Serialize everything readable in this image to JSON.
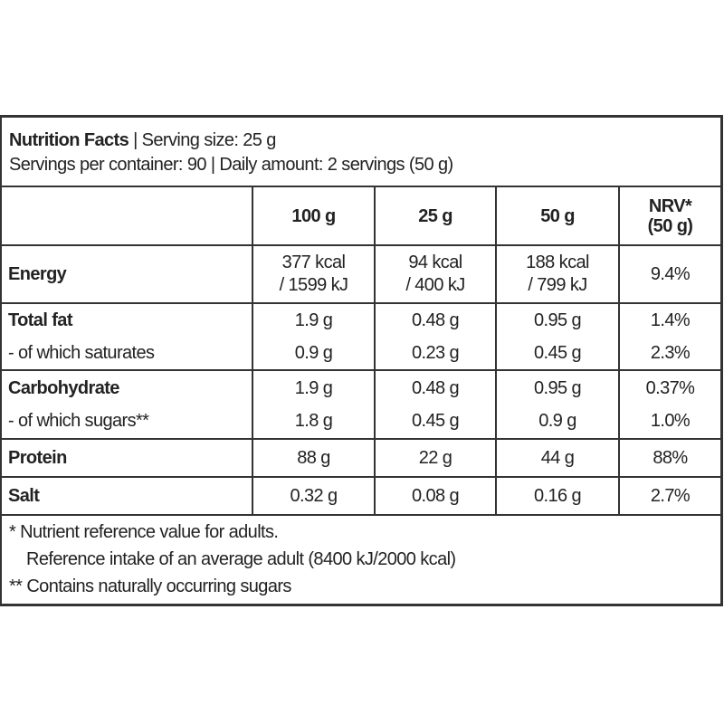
{
  "header": {
    "title": "Nutrition Facts",
    "serving": " | Serving size: 25 g",
    "line2": "Servings per container: 90 | Daily amount: 2 servings (50 g)"
  },
  "columns": [
    "100 g",
    "25 g",
    "50 g",
    "NRV*",
    "(50 g)"
  ],
  "energy": {
    "label": "Energy",
    "c100": [
      "377 kcal",
      "/ 1599 kJ"
    ],
    "c25": [
      "94 kcal",
      "/ 400 kJ"
    ],
    "c50": [
      "188 kcal",
      "/ 799 kJ"
    ],
    "nrv": "9.4%"
  },
  "rows": [
    {
      "label": "Total fat",
      "v": [
        "1.9 g",
        "0.48 g",
        "0.95 g",
        "1.4%"
      ]
    },
    {
      "label": "- of which saturates",
      "v": [
        "0.9 g",
        "0.23 g",
        "0.45 g",
        "2.3%"
      ]
    },
    {
      "label": "Carbohydrate",
      "v": [
        "1.9 g",
        "0.48 g",
        "0.95 g",
        "0.37%"
      ]
    },
    {
      "label": "- of which sugars**",
      "v": [
        "1.8 g",
        "0.45 g",
        "0.9 g",
        "1.0%"
      ]
    },
    {
      "label": "Protein",
      "v": [
        "88 g",
        "22 g",
        "44 g",
        "88%"
      ]
    },
    {
      "label": "Salt",
      "v": [
        "0.32 g",
        "0.08 g",
        "0.16 g",
        "2.7%"
      ]
    }
  ],
  "footnotes": [
    "* Nutrient reference value for adults.",
    "Reference intake of an average adult (8400 kJ/2000 kcal)",
    "** Contains naturally occurring sugars"
  ]
}
